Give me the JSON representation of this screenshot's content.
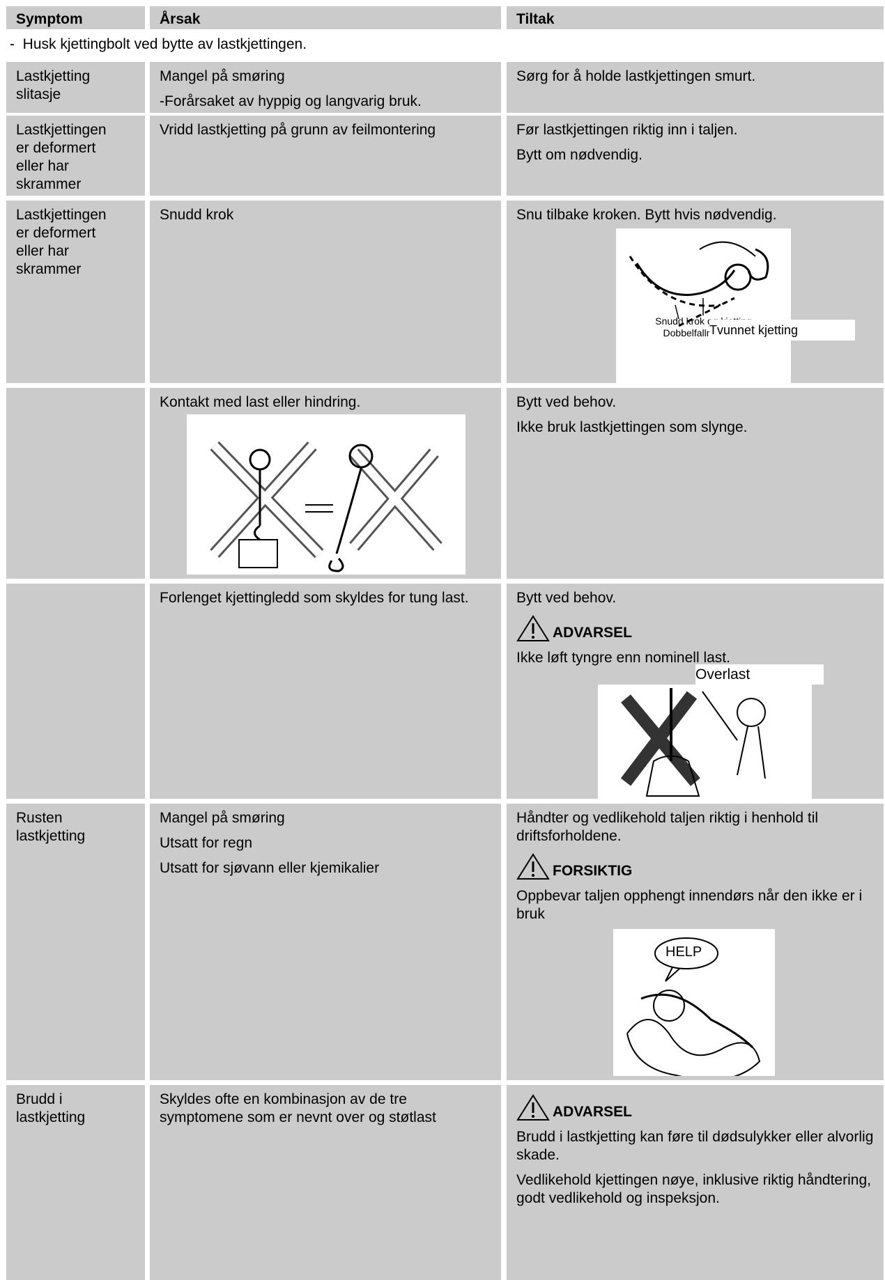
{
  "header": {
    "columns": [
      "Symptom",
      "Årsak",
      "Tiltak"
    ]
  },
  "note": "-  Husk kjettingbolt ved bytte av lastkjettingen.",
  "rows": [
    {
      "symptom": "Lastkjetting slitasje",
      "cause": [
        "Mangel på smøring",
        "-Forårsaket av hyppig og langvarig bruk."
      ],
      "action": [
        "Sørg for å holde lastkjettingen smurt."
      ]
    },
    {
      "symptom": "Lastkjettingen er deformert eller har skrammer",
      "cause": [
        "Vridd lastkjetting på grunn av feilmontering"
      ],
      "action": [
        "Før lastkjettingen riktig inn i taljen.",
        "Bytt om nødvendig."
      ]
    },
    {
      "symptom": "Lastkjettingen er deformert eller har skrammer",
      "cause": [
        "Snudd krok"
      ],
      "action": [
        "Snu tilbake kroken. Bytt hvis nødvendig."
      ],
      "figure": {
        "label": "Tvunnet kjetting",
        "caption": [
          "Snudd krok og kjetting",
          "Dobbelfallmodeller"
        ]
      }
    },
    {
      "cause": [
        "Kontakt med last eller hindring."
      ],
      "action": [
        "Bytt ved behov.",
        "Ikke bruk lastkjettingen som slynge."
      ]
    },
    {
      "cause": [
        "Forlenget kjettingledd som skyldes for tung last."
      ],
      "action": [
        "Bytt ved behov."
      ],
      "warning": "ADVARSEL",
      "action_after": [
        "Ikke løft tyngre enn nominell last."
      ],
      "figure": {
        "label": "Overlast"
      }
    },
    {
      "symptom": "Rusten lastkjetting",
      "cause": [
        "Mangel på smøring",
        "Utsatt for regn",
        "Utsatt for sjøvann eller kjemikalier"
      ],
      "action": [
        "Håndter og vedlikehold taljen riktig i henhold til driftsforholdene."
      ],
      "warning": "FORSIKTIG",
      "action_after": [
        "Oppbevar taljen opphengt innendørs når den ikke er i bruk"
      ],
      "figure": {
        "label": "HELP"
      }
    },
    {
      "symptom": "Brudd i lastkjetting",
      "cause": [
        "Skyldes ofte en kombinasjon av de tre symptomene som er nevnt over og støtlast"
      ],
      "warning": "ADVARSEL",
      "action_after": [
        "Brudd i lastkjetting kan føre til dødsulykker eller alvorlig skade.",
        "Vedlikehold kjettingen nøye, inklusive riktig håndtering, godt vedlikehold og inspeksjon."
      ]
    }
  ]
}
